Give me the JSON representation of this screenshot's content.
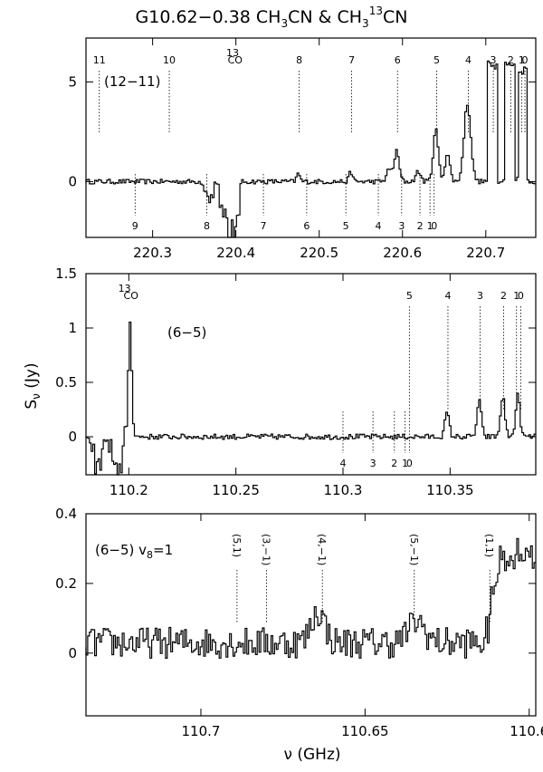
{
  "figure": {
    "title_main": "G10.62−0.38 CH",
    "title_sub1": "3",
    "title_mid": "CN & CH",
    "title_sub2": "3",
    "title_sup": "13",
    "title_end": "CN",
    "ylabel_main": "S",
    "ylabel_sub": "ν",
    "ylabel_unit": " (Jy)",
    "xlabel_main": "ν",
    "xlabel_unit": " (GHz)"
  },
  "chart_data": [
    {
      "type": "line",
      "panel_label": "(12−11)",
      "xlim": [
        220.22,
        220.76
      ],
      "ylim": [
        -2.8,
        7.2
      ],
      "xticks": [
        220.3,
        220.4,
        220.5,
        220.6,
        220.7
      ],
      "xtick_labels": [
        "220.3",
        "220.4",
        "220.5",
        "220.6",
        "220.7"
      ],
      "yticks": [
        0,
        5
      ],
      "ytick_labels": [
        "0",
        "5"
      ],
      "upper_markers": [
        {
          "label": "11",
          "x": 220.236
        },
        {
          "label": "10",
          "x": 220.32
        },
        {
          "label": "13",
          "x": 220.396,
          "sup": true
        },
        {
          "label": "CO",
          "x": 220.399
        },
        {
          "label": "8",
          "x": 220.476
        },
        {
          "label": "7",
          "x": 220.539
        },
        {
          "label": "6",
          "x": 220.594
        },
        {
          "label": "5",
          "x": 220.641
        },
        {
          "label": "4",
          "x": 220.679
        },
        {
          "label": "3",
          "x": 220.709
        },
        {
          "label": "2",
          "x": 220.73
        },
        {
          "label": "1",
          "x": 220.743
        },
        {
          "label": "0",
          "x": 220.747
        }
      ],
      "lower_markers": [
        {
          "label": "9",
          "x": 220.279
        },
        {
          "label": "8",
          "x": 220.365
        },
        {
          "label": "7",
          "x": 220.433
        },
        {
          "label": "6",
          "x": 220.485
        },
        {
          "label": "5",
          "x": 220.532
        },
        {
          "label": "4",
          "x": 220.571
        },
        {
          "label": "3",
          "x": 220.599
        },
        {
          "label": "2",
          "x": 220.621
        },
        {
          "label": "1",
          "x": 220.633
        },
        {
          "label": "0",
          "x": 220.638
        }
      ],
      "features": [
        {
          "x": 220.594,
          "amp": 1.5,
          "w": 0.003
        },
        {
          "x": 220.585,
          "amp": 0.6,
          "w": 0.003
        },
        {
          "x": 220.641,
          "amp": 2.6,
          "w": 0.003
        },
        {
          "x": 220.655,
          "amp": 1.4,
          "w": 0.003
        },
        {
          "x": 220.679,
          "amp": 3.9,
          "w": 0.004
        },
        {
          "x": 220.709,
          "amp": 5.9,
          "w": 0.0045,
          "flat": true
        },
        {
          "x": 220.73,
          "amp": 5.9,
          "w": 0.0045,
          "flat": true
        },
        {
          "x": 220.745,
          "amp": 5.6,
          "w": 0.0045,
          "flat": true
        },
        {
          "x": 220.539,
          "amp": 0.5,
          "w": 0.002
        },
        {
          "x": 220.476,
          "amp": 0.4,
          "w": 0.002
        },
        {
          "x": 220.62,
          "amp": 0.5,
          "w": 0.003
        }
      ],
      "absorption": [
        {
          "x": 220.37,
          "amp": -1.0,
          "w": 0.004
        },
        {
          "x": 220.385,
          "amp": -1.6,
          "w": 0.003
        },
        {
          "x": 220.394,
          "amp": -2.8,
          "w": 0.0025
        },
        {
          "x": 220.401,
          "amp": -2.8,
          "w": 0.0025
        }
      ],
      "noise": 0.12
    },
    {
      "type": "line",
      "panel_label": "(6−5)",
      "xlim": [
        110.18,
        110.39
      ],
      "ylim": [
        -0.35,
        1.5
      ],
      "xticks": [
        110.2,
        110.25,
        110.3,
        110.35
      ],
      "xtick_labels": [
        "110.2",
        "110.25",
        "110.3",
        "110.35"
      ],
      "yticks": [
        0,
        0.5,
        1,
        1.5
      ],
      "ytick_labels": [
        "0",
        "0.5",
        "1",
        "1.5"
      ],
      "upper_markers": [
        {
          "label": "13",
          "x": 110.198,
          "sup": true
        },
        {
          "label": "CO",
          "x": 110.201
        },
        {
          "label": "5",
          "x": 110.331
        },
        {
          "label": "4",
          "x": 110.349
        },
        {
          "label": "3",
          "x": 110.364
        },
        {
          "label": "2",
          "x": 110.375
        },
        {
          "label": "1",
          "x": 110.381
        },
        {
          "label": "0",
          "x": 110.383
        }
      ],
      "lower_markers": [
        {
          "label": "4",
          "x": 110.3
        },
        {
          "label": "3",
          "x": 110.314
        },
        {
          "label": "2",
          "x": 110.324
        },
        {
          "label": "1",
          "x": 110.329
        },
        {
          "label": "0",
          "x": 110.331
        }
      ],
      "features": [
        {
          "x": 110.201,
          "amp": 1.05,
          "w": 0.0008
        },
        {
          "x": 110.349,
          "amp": 0.22,
          "w": 0.001
        },
        {
          "x": 110.364,
          "amp": 0.33,
          "w": 0.001
        },
        {
          "x": 110.375,
          "amp": 0.37,
          "w": 0.001
        },
        {
          "x": 110.382,
          "amp": 0.38,
          "w": 0.001
        }
      ],
      "absorption": [
        {
          "x": 110.186,
          "amp": -0.3,
          "w": 0.002
        },
        {
          "x": 110.195,
          "amp": -0.35,
          "w": 0.002
        }
      ],
      "noise": 0.025
    },
    {
      "type": "line",
      "panel_label_main": "(6−5)  v",
      "panel_label_sub": "8",
      "panel_label_end": "=1",
      "xlim": [
        110.735,
        110.598
      ],
      "ylim": [
        -0.18,
        0.4
      ],
      "xticks": [
        110.7,
        110.65,
        110.6
      ],
      "xtick_labels": [
        "110.7",
        "110.65",
        "110.6"
      ],
      "yticks": [
        0,
        0.2,
        0.4
      ],
      "ytick_labels": [
        "0",
        "0.2",
        "0.4"
      ],
      "upper_markers": [
        {
          "label": "(5,1)",
          "x": 110.689
        },
        {
          "label": "(3,−1)",
          "x": 110.68
        },
        {
          "label": "(4,−1)",
          "x": 110.663
        },
        {
          "label": "(5,−1)",
          "x": 110.635
        },
        {
          "label": "(1,1)",
          "x": 110.612
        }
      ],
      "lower_markers": [],
      "noise": 0.045
    }
  ]
}
